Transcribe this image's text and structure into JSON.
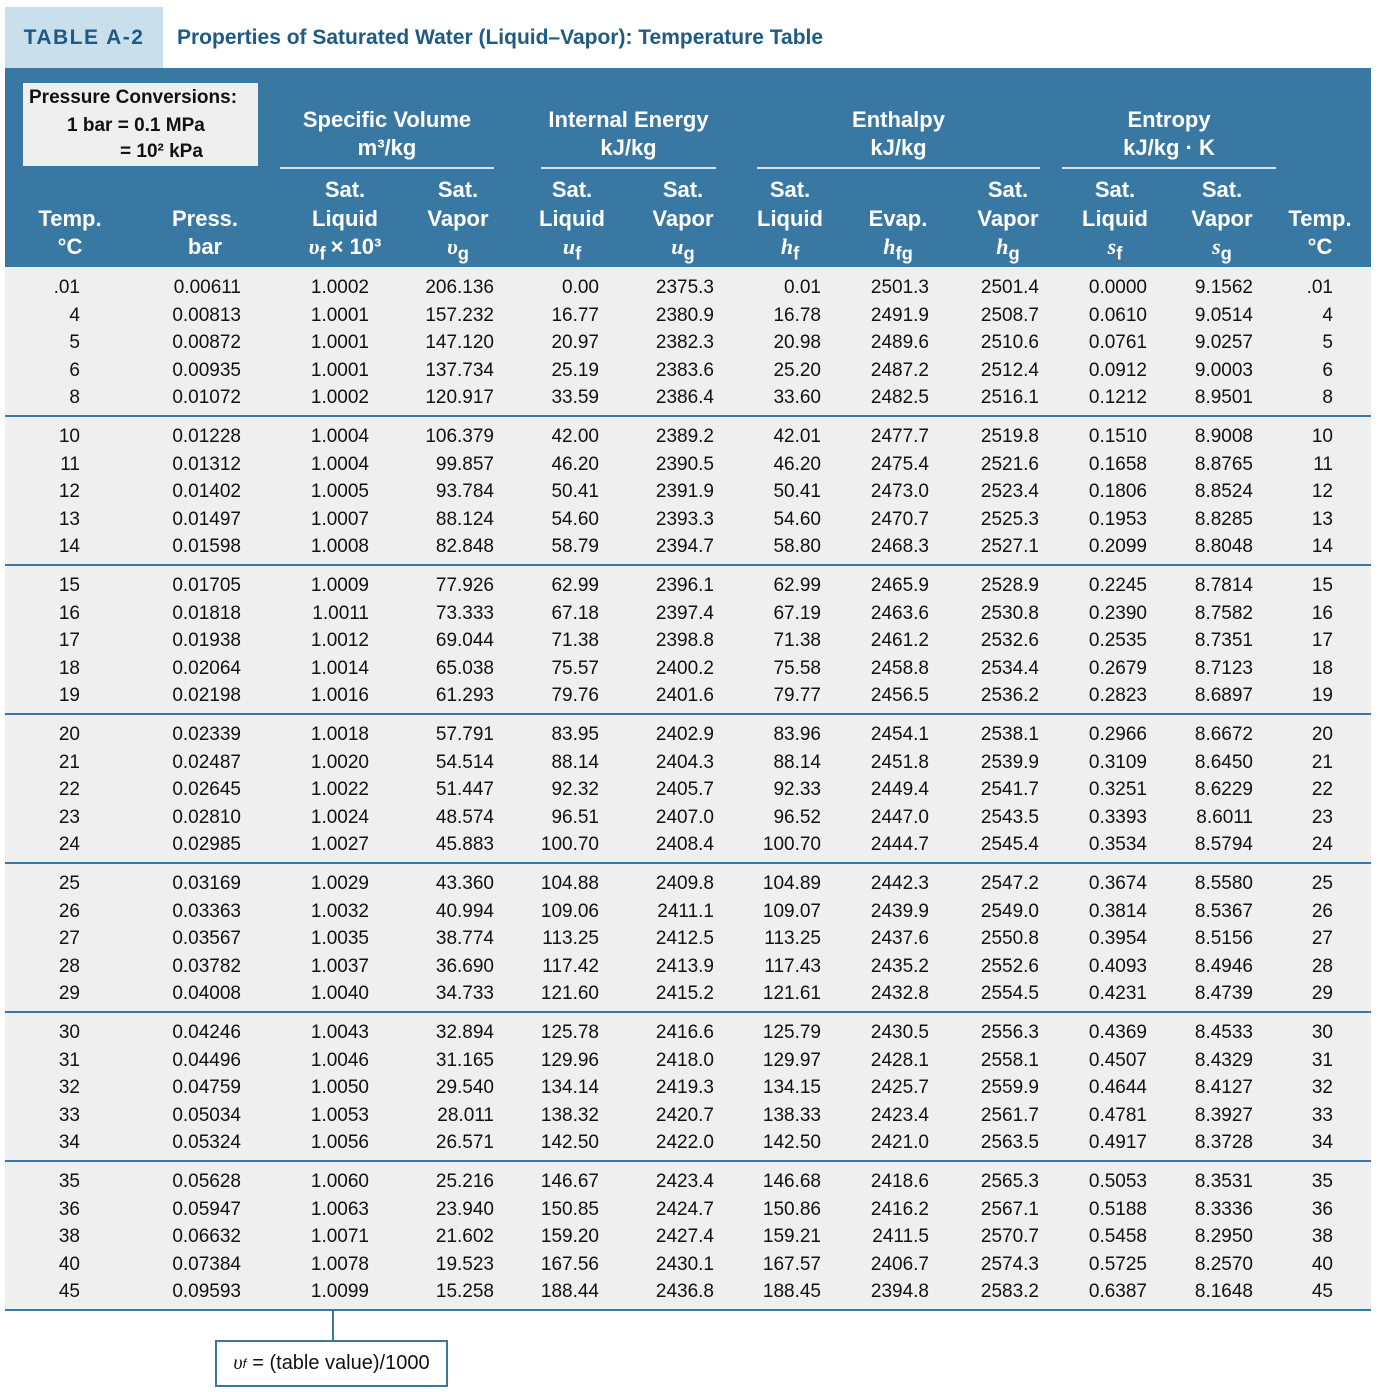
{
  "header": {
    "label": "TABLE A-2",
    "title": "Properties of Saturated Water (Liquid–Vapor): Temperature Table"
  },
  "pressure_conversions": {
    "title": "Pressure Conversions:",
    "lines": [
      "1 bar = 0.1 MPa",
      "= 10² kPa"
    ]
  },
  "groups": [
    {
      "name": "Specific Volume",
      "unit": "m³/kg"
    },
    {
      "name": "Internal Energy",
      "unit": "kJ/kg"
    },
    {
      "name": "Enthalpy",
      "unit": "kJ/kg"
    },
    {
      "name": "Entropy",
      "unit": "kJ/kg · K"
    }
  ],
  "columns": [
    {
      "lines": [
        "Temp.",
        "°C"
      ]
    },
    {
      "lines": [
        "Press.",
        "bar"
      ]
    },
    {
      "lines": [
        "Sat.",
        "Liquid"
      ],
      "symbol": {
        "var": "υ",
        "sub": "f",
        "extra": "× 10³"
      }
    },
    {
      "lines": [
        "Sat.",
        "Vapor"
      ],
      "symbol": {
        "var": "υ",
        "sub": "g"
      }
    },
    {
      "lines": [
        "Sat.",
        "Liquid"
      ],
      "symbol": {
        "var": "u",
        "sub": "f"
      }
    },
    {
      "lines": [
        "Sat.",
        "Vapor"
      ],
      "symbol": {
        "var": "u",
        "sub": "g"
      }
    },
    {
      "lines": [
        "Sat.",
        "Liquid"
      ],
      "symbol": {
        "var": "h",
        "sub": "f"
      }
    },
    {
      "lines": [
        "Evap."
      ],
      "symbol": {
        "var": "h",
        "sub": "fg"
      }
    },
    {
      "lines": [
        "Sat.",
        "Vapor"
      ],
      "symbol": {
        "var": "h",
        "sub": "g"
      }
    },
    {
      "lines": [
        "Sat.",
        "Liquid"
      ],
      "symbol": {
        "var": "s",
        "sub": "f"
      }
    },
    {
      "lines": [
        "Sat.",
        "Vapor"
      ],
      "symbol": {
        "var": "s",
        "sub": "g"
      }
    },
    {
      "lines": [
        "Temp.",
        "°C"
      ]
    }
  ],
  "rows": [
    [
      ".01",
      "0.00611",
      "1.0002",
      "206.136",
      "0.00",
      "2375.3",
      "0.01",
      "2501.3",
      "2501.4",
      "0.0000",
      "9.1562",
      ".01"
    ],
    [
      "4",
      "0.00813",
      "1.0001",
      "157.232",
      "16.77",
      "2380.9",
      "16.78",
      "2491.9",
      "2508.7",
      "0.0610",
      "9.0514",
      "4"
    ],
    [
      "5",
      "0.00872",
      "1.0001",
      "147.120",
      "20.97",
      "2382.3",
      "20.98",
      "2489.6",
      "2510.6",
      "0.0761",
      "9.0257",
      "5"
    ],
    [
      "6",
      "0.00935",
      "1.0001",
      "137.734",
      "25.19",
      "2383.6",
      "25.20",
      "2487.2",
      "2512.4",
      "0.0912",
      "9.0003",
      "6"
    ],
    [
      "8",
      "0.01072",
      "1.0002",
      "120.917",
      "33.59",
      "2386.4",
      "33.60",
      "2482.5",
      "2516.1",
      "0.1212",
      "8.9501",
      "8"
    ],
    [
      "10",
      "0.01228",
      "1.0004",
      "106.379",
      "42.00",
      "2389.2",
      "42.01",
      "2477.7",
      "2519.8",
      "0.1510",
      "8.9008",
      "10"
    ],
    [
      "11",
      "0.01312",
      "1.0004",
      "99.857",
      "46.20",
      "2390.5",
      "46.20",
      "2475.4",
      "2521.6",
      "0.1658",
      "8.8765",
      "11"
    ],
    [
      "12",
      "0.01402",
      "1.0005",
      "93.784",
      "50.41",
      "2391.9",
      "50.41",
      "2473.0",
      "2523.4",
      "0.1806",
      "8.8524",
      "12"
    ],
    [
      "13",
      "0.01497",
      "1.0007",
      "88.124",
      "54.60",
      "2393.3",
      "54.60",
      "2470.7",
      "2525.3",
      "0.1953",
      "8.8285",
      "13"
    ],
    [
      "14",
      "0.01598",
      "1.0008",
      "82.848",
      "58.79",
      "2394.7",
      "58.80",
      "2468.3",
      "2527.1",
      "0.2099",
      "8.8048",
      "14"
    ],
    [
      "15",
      "0.01705",
      "1.0009",
      "77.926",
      "62.99",
      "2396.1",
      "62.99",
      "2465.9",
      "2528.9",
      "0.2245",
      "8.7814",
      "15"
    ],
    [
      "16",
      "0.01818",
      "1.0011",
      "73.333",
      "67.18",
      "2397.4",
      "67.19",
      "2463.6",
      "2530.8",
      "0.2390",
      "8.7582",
      "16"
    ],
    [
      "17",
      "0.01938",
      "1.0012",
      "69.044",
      "71.38",
      "2398.8",
      "71.38",
      "2461.2",
      "2532.6",
      "0.2535",
      "8.7351",
      "17"
    ],
    [
      "18",
      "0.02064",
      "1.0014",
      "65.038",
      "75.57",
      "2400.2",
      "75.58",
      "2458.8",
      "2534.4",
      "0.2679",
      "8.7123",
      "18"
    ],
    [
      "19",
      "0.02198",
      "1.0016",
      "61.293",
      "79.76",
      "2401.6",
      "79.77",
      "2456.5",
      "2536.2",
      "0.2823",
      "8.6897",
      "19"
    ],
    [
      "20",
      "0.02339",
      "1.0018",
      "57.791",
      "83.95",
      "2402.9",
      "83.96",
      "2454.1",
      "2538.1",
      "0.2966",
      "8.6672",
      "20"
    ],
    [
      "21",
      "0.02487",
      "1.0020",
      "54.514",
      "88.14",
      "2404.3",
      "88.14",
      "2451.8",
      "2539.9",
      "0.3109",
      "8.6450",
      "21"
    ],
    [
      "22",
      "0.02645",
      "1.0022",
      "51.447",
      "92.32",
      "2405.7",
      "92.33",
      "2449.4",
      "2541.7",
      "0.3251",
      "8.6229",
      "22"
    ],
    [
      "23",
      "0.02810",
      "1.0024",
      "48.574",
      "96.51",
      "2407.0",
      "96.52",
      "2447.0",
      "2543.5",
      "0.3393",
      "8.6011",
      "23"
    ],
    [
      "24",
      "0.02985",
      "1.0027",
      "45.883",
      "100.70",
      "2408.4",
      "100.70",
      "2444.7",
      "2545.4",
      "0.3534",
      "8.5794",
      "24"
    ],
    [
      "25",
      "0.03169",
      "1.0029",
      "43.360",
      "104.88",
      "2409.8",
      "104.89",
      "2442.3",
      "2547.2",
      "0.3674",
      "8.5580",
      "25"
    ],
    [
      "26",
      "0.03363",
      "1.0032",
      "40.994",
      "109.06",
      "2411.1",
      "109.07",
      "2439.9",
      "2549.0",
      "0.3814",
      "8.5367",
      "26"
    ],
    [
      "27",
      "0.03567",
      "1.0035",
      "38.774",
      "113.25",
      "2412.5",
      "113.25",
      "2437.6",
      "2550.8",
      "0.3954",
      "8.5156",
      "27"
    ],
    [
      "28",
      "0.03782",
      "1.0037",
      "36.690",
      "117.42",
      "2413.9",
      "117.43",
      "2435.2",
      "2552.6",
      "0.4093",
      "8.4946",
      "28"
    ],
    [
      "29",
      "0.04008",
      "1.0040",
      "34.733",
      "121.60",
      "2415.2",
      "121.61",
      "2432.8",
      "2554.5",
      "0.4231",
      "8.4739",
      "29"
    ],
    [
      "30",
      "0.04246",
      "1.0043",
      "32.894",
      "125.78",
      "2416.6",
      "125.79",
      "2430.5",
      "2556.3",
      "0.4369",
      "8.4533",
      "30"
    ],
    [
      "31",
      "0.04496",
      "1.0046",
      "31.165",
      "129.96",
      "2418.0",
      "129.97",
      "2428.1",
      "2558.1",
      "0.4507",
      "8.4329",
      "31"
    ],
    [
      "32",
      "0.04759",
      "1.0050",
      "29.540",
      "134.14",
      "2419.3",
      "134.15",
      "2425.7",
      "2559.9",
      "0.4644",
      "8.4127",
      "32"
    ],
    [
      "33",
      "0.05034",
      "1.0053",
      "28.011",
      "138.32",
      "2420.7",
      "138.33",
      "2423.4",
      "2561.7",
      "0.4781",
      "8.3927",
      "33"
    ],
    [
      "34",
      "0.05324",
      "1.0056",
      "26.571",
      "142.50",
      "2422.0",
      "142.50",
      "2421.0",
      "2563.5",
      "0.4917",
      "8.3728",
      "34"
    ],
    [
      "35",
      "0.05628",
      "1.0060",
      "25.216",
      "146.67",
      "2423.4",
      "146.68",
      "2418.6",
      "2565.3",
      "0.5053",
      "8.3531",
      "35"
    ],
    [
      "36",
      "0.05947",
      "1.0063",
      "23.940",
      "150.85",
      "2424.7",
      "150.86",
      "2416.2",
      "2567.1",
      "0.5188",
      "8.3336",
      "36"
    ],
    [
      "38",
      "0.06632",
      "1.0071",
      "21.602",
      "159.20",
      "2427.4",
      "159.21",
      "2411.5",
      "2570.7",
      "0.5458",
      "8.2950",
      "38"
    ],
    [
      "40",
      "0.07384",
      "1.0078",
      "19.523",
      "167.56",
      "2430.1",
      "167.57",
      "2406.7",
      "2574.3",
      "0.5725",
      "8.2570",
      "40"
    ],
    [
      "45",
      "0.09593",
      "1.0099",
      "15.258",
      "188.44",
      "2436.8",
      "188.45",
      "2394.8",
      "2583.2",
      "0.6387",
      "8.1648",
      "45"
    ]
  ],
  "footnote": {
    "var": "υ",
    "sub": "f",
    "text": "= (table value)/1000"
  }
}
